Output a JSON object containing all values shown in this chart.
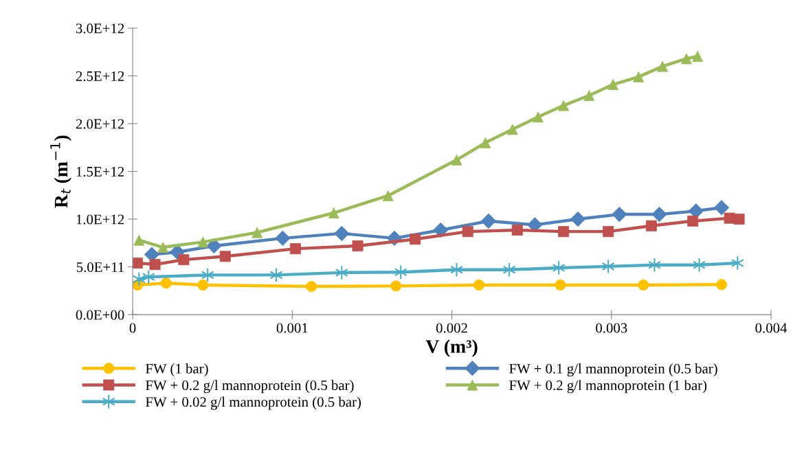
{
  "chart_data": {
    "type": "line",
    "xlabel": "V (m³)",
    "ylabel": "R$_{t}$ (m$^{−1}$)",
    "xlim": [
      0,
      0.004
    ],
    "xticks": [
      0,
      0.001,
      0.002,
      0.003,
      0.004
    ],
    "ylim": [
      0,
      3000000000000.0
    ],
    "yticks": [
      {
        "value": 0,
        "label": "0.0E+00"
      },
      {
        "value": 500000000000.0,
        "label": "5.0E+11"
      },
      {
        "value": 1000000000000.0,
        "label": "1.0E+12"
      },
      {
        "value": 1500000000000.0,
        "label": "1.5E+12"
      },
      {
        "value": 2000000000000.0,
        "label": "2.0E+12"
      },
      {
        "value": 2500000000000.0,
        "label": "2.5E+12"
      },
      {
        "value": 3000000000000.0,
        "label": "3.0E+12"
      }
    ],
    "grid": false,
    "legend": "bottom",
    "series": [
      {
        "name": "FW (1 bar)",
        "color": "#ffc000",
        "marker": "circle",
        "x": [
          3e-05,
          0.00021,
          0.00044,
          0.00112,
          0.00165,
          0.00217,
          0.00268,
          0.0032,
          0.00369
        ],
        "values": [
          310000000000.0,
          330000000000.0,
          310000000000.0,
          295000000000.0,
          300000000000.0,
          310000000000.0,
          310000000000.0,
          310000000000.0,
          315000000000.0
        ]
      },
      {
        "name": "FW + 0.1 g/l mannoprotein (0.5 bar)",
        "color": "#4f81bd",
        "marker": "diamond",
        "x": [
          0.00012,
          0.00028,
          0.00051,
          0.00094,
          0.00131,
          0.00164,
          0.00193,
          0.00223,
          0.00252,
          0.00279,
          0.00305,
          0.0033,
          0.00353,
          0.00369
        ],
        "values": [
          630000000000.0,
          655000000000.0,
          720000000000.0,
          800000000000.0,
          850000000000.0,
          800000000000.0,
          885000000000.0,
          980000000000.0,
          940000000000.0,
          1000000000000.0,
          1050000000000.0,
          1050000000000.0,
          1085000000000.0,
          1120000000000.0
        ]
      },
      {
        "name": "FW + 0.2 g/l mannoprotein (0.5 bar)",
        "color": "#c0504d",
        "marker": "square",
        "x": [
          3e-05,
          0.00014,
          0.00032,
          0.00058,
          0.00102,
          0.00141,
          0.00177,
          0.0021,
          0.00241,
          0.0027,
          0.00298,
          0.00325,
          0.00351,
          0.00374,
          0.0038
        ],
        "values": [
          540000000000.0,
          525000000000.0,
          575000000000.0,
          610000000000.0,
          690000000000.0,
          720000000000.0,
          790000000000.0,
          870000000000.0,
          885000000000.0,
          870000000000.0,
          870000000000.0,
          930000000000.0,
          980000000000.0,
          1010000000000.0,
          1000000000000.0
        ]
      },
      {
        "name": "FW + 0.2 g/l mannoprotein (1 bar)",
        "color": "#9bbb59",
        "marker": "triangle",
        "x": [
          4e-05,
          0.00019,
          0.00044,
          0.00078,
          0.00126,
          0.0016,
          0.00203,
          0.00221,
          0.00238,
          0.00254,
          0.0027,
          0.00286,
          0.00301,
          0.00317,
          0.00332,
          0.00347,
          0.00354
        ],
        "values": [
          780000000000.0,
          705000000000.0,
          760000000000.0,
          860000000000.0,
          1065000000000.0,
          1245000000000.0,
          1620000000000.0,
          1800000000000.0,
          1940000000000.0,
          2070000000000.0,
          2190000000000.0,
          2295000000000.0,
          2410000000000.0,
          2490000000000.0,
          2600000000000.0,
          2680000000000.0,
          2705000000000.0
        ]
      },
      {
        "name": "FW + 0.02 g/l mannoprotein (0.5 bar)",
        "color": "#4bacc6",
        "marker": "cross",
        "x": [
          4e-05,
          0.0001,
          0.00047,
          0.0009,
          0.00131,
          0.00168,
          0.00203,
          0.00236,
          0.00267,
          0.00298,
          0.00327,
          0.00355,
          0.00379
        ],
        "values": [
          370000000000.0,
          395000000000.0,
          415000000000.0,
          415000000000.0,
          440000000000.0,
          445000000000.0,
          470000000000.0,
          470000000000.0,
          490000000000.0,
          505000000000.0,
          520000000000.0,
          520000000000.0,
          540000000000.0
        ]
      }
    ]
  }
}
